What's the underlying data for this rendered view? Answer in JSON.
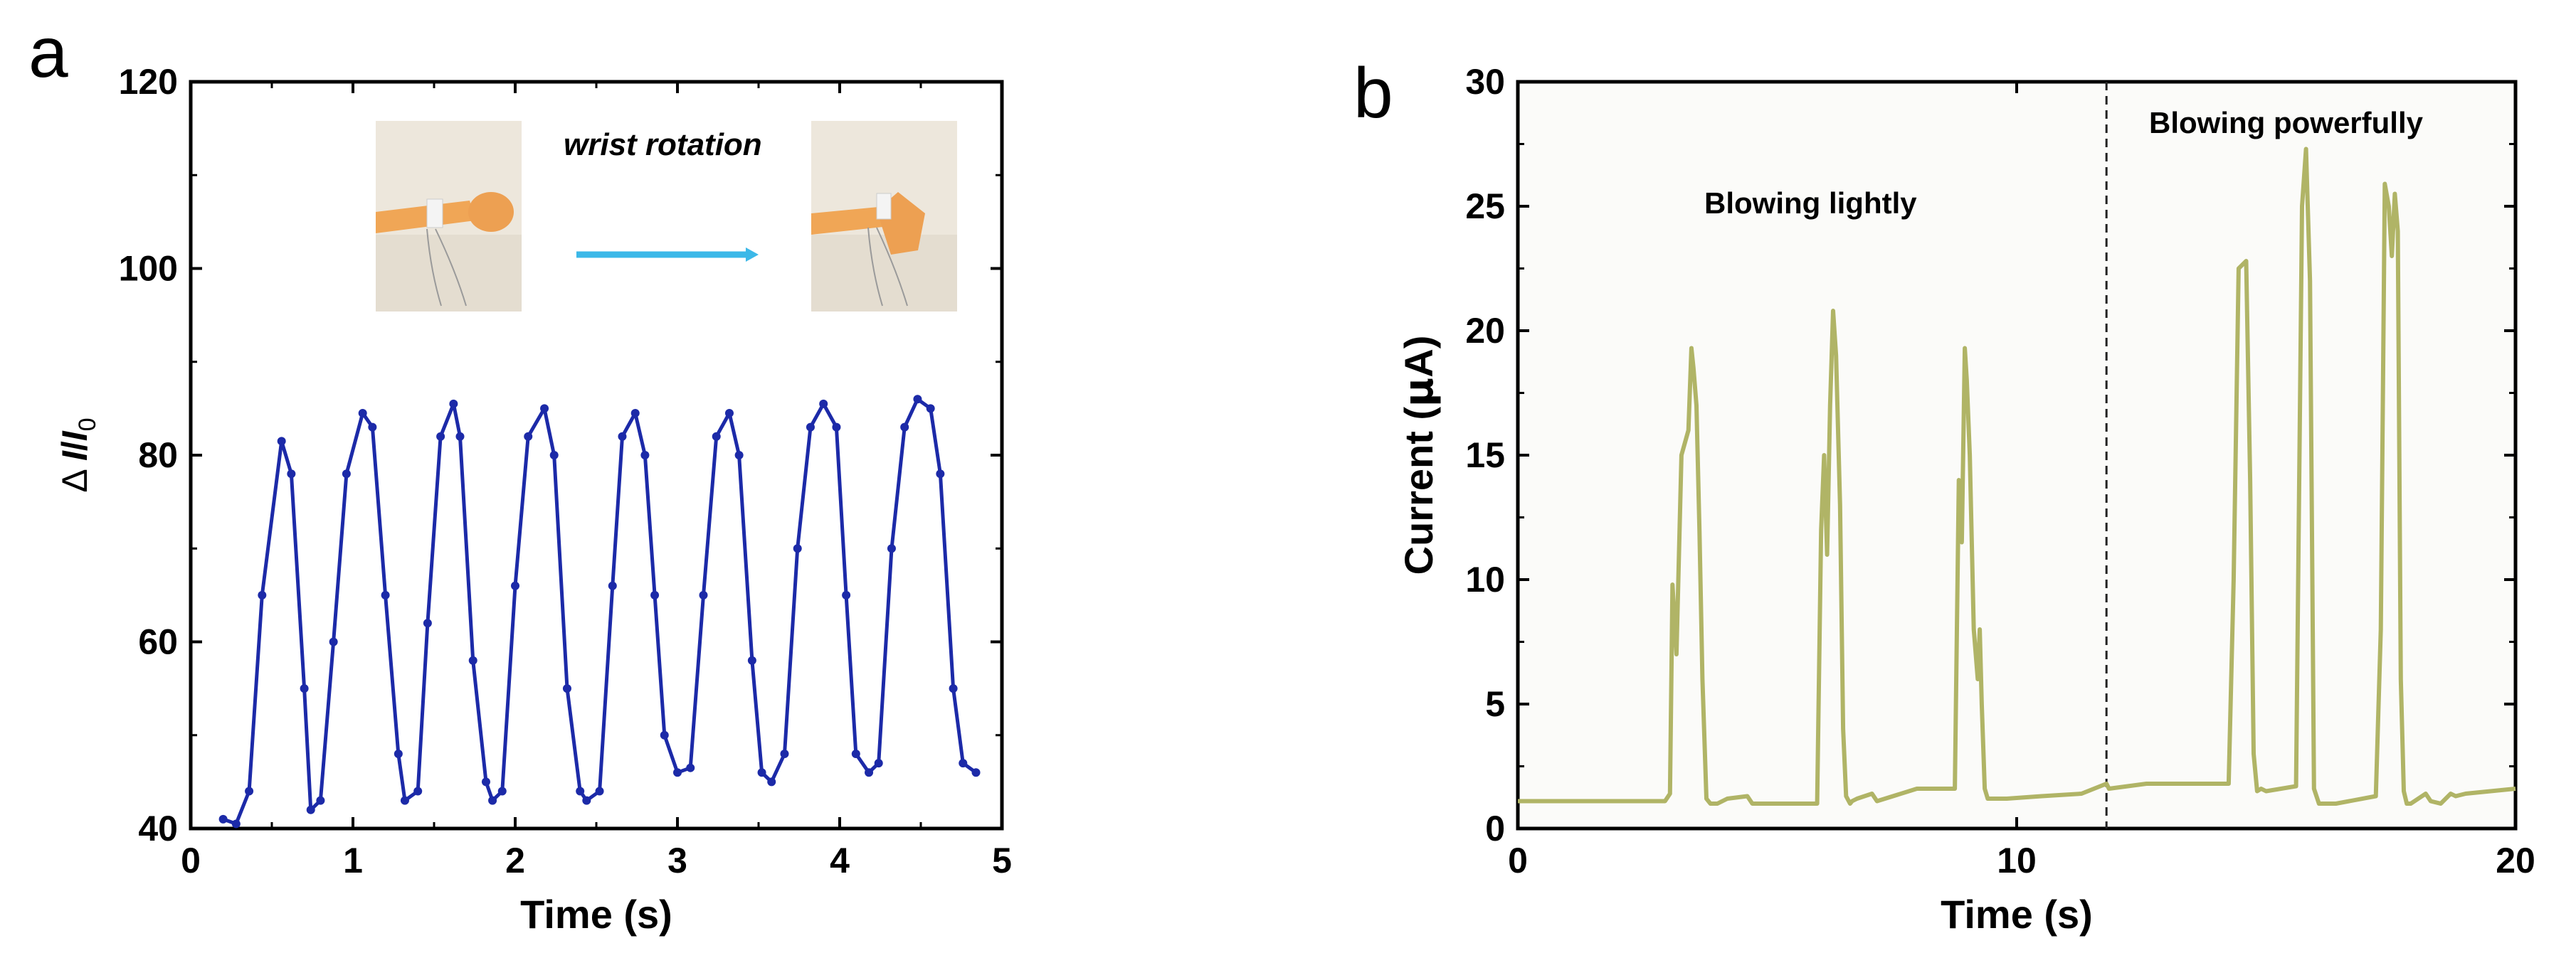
{
  "chart_data": [
    {
      "panel": "a",
      "type": "line",
      "xlabel": "Time (s)",
      "ylabel": {
        "prefix": "Δ ",
        "I": "I",
        "slash": "/",
        "I0": "I",
        "sub": "0"
      },
      "xlim": [
        0,
        5
      ],
      "ylim": [
        40,
        120
      ],
      "xticks": [
        0,
        1,
        2,
        3,
        4,
        5
      ],
      "yticks": [
        40,
        60,
        80,
        100,
        120
      ],
      "color": "#1c2aa8",
      "marker": "dot",
      "inset_label": "wrist rotation",
      "inset_images": [
        "wrist-straight-photo",
        "wrist-bent-photo"
      ],
      "series": [
        {
          "name": "ΔI/I0",
          "x": [
            0.2,
            0.28,
            0.36,
            0.44,
            0.56,
            0.62,
            0.7,
            0.74,
            0.8,
            0.88,
            0.96,
            1.06,
            1.12,
            1.2,
            1.28,
            1.32,
            1.4,
            1.46,
            1.54,
            1.62,
            1.66,
            1.74,
            1.82,
            1.86,
            1.92,
            2.0,
            2.08,
            2.18,
            2.24,
            2.32,
            2.4,
            2.44,
            2.52,
            2.6,
            2.66,
            2.74,
            2.8,
            2.86,
            2.92,
            3.0,
            3.08,
            3.16,
            3.24,
            3.32,
            3.38,
            3.46,
            3.52,
            3.58,
            3.66,
            3.74,
            3.82,
            3.9,
            3.98,
            4.04,
            4.1,
            4.18,
            4.24,
            4.32,
            4.4,
            4.48,
            4.56,
            4.62,
            4.7,
            4.76,
            4.84
          ],
          "y": [
            41,
            40.5,
            44,
            65,
            81.5,
            78,
            55,
            42,
            43,
            60,
            78,
            84.5,
            83,
            65,
            48,
            43,
            44,
            62,
            82,
            85.5,
            82,
            58,
            45,
            43,
            44,
            66,
            82,
            85,
            80,
            55,
            44,
            43,
            44,
            66,
            82,
            84.5,
            80,
            65,
            50,
            46,
            46.5,
            65,
            82,
            84.5,
            80,
            58,
            46,
            45,
            48,
            70,
            83,
            85.5,
            83,
            65,
            48,
            46,
            47,
            70,
            83,
            86,
            85,
            78,
            55,
            47,
            46
          ]
        }
      ]
    },
    {
      "panel": "b",
      "type": "line",
      "xlabel": "Time (s)",
      "ylabel": {
        "prefix": "Current (",
        "mu": "μ",
        "suffix": "A)"
      },
      "xlim": [
        0,
        20
      ],
      "ylim": [
        0,
        30
      ],
      "xticks": [
        0,
        10,
        20
      ],
      "yticks": [
        0,
        5,
        10,
        15,
        20,
        25,
        30
      ],
      "color": "#b0b466",
      "divider_x": 11.8,
      "annotations": [
        "Blowing lightly",
        "Blowing powerfully"
      ],
      "series": [
        {
          "name": "Current",
          "x": [
            0,
            2.95,
            3.05,
            3.1,
            3.18,
            3.28,
            3.42,
            3.48,
            3.52,
            3.58,
            3.64,
            3.7,
            3.78,
            3.86,
            4.0,
            4.2,
            4.6,
            4.7,
            6.0,
            6.08,
            6.14,
            6.2,
            6.26,
            6.32,
            6.38,
            6.46,
            6.52,
            6.58,
            6.66,
            6.7,
            6.8,
            7.1,
            7.2,
            8.0,
            8.6,
            8.76,
            8.84,
            8.9,
            8.96,
            9.0,
            9.06,
            9.14,
            9.22,
            9.26,
            9.3,
            9.36,
            9.42,
            9.5,
            9.8,
            10.5,
            11.3,
            11.8,
            11.85,
            12.6,
            14.25,
            14.35,
            14.45,
            14.6,
            14.68,
            14.75,
            14.82,
            14.9,
            15.0,
            15.3,
            15.6,
            15.72,
            15.8,
            15.88,
            15.96,
            16.06,
            16.14,
            16.2,
            16.4,
            17.2,
            17.3,
            17.38,
            17.46,
            17.52,
            17.58,
            17.64,
            17.7,
            17.76,
            17.82,
            17.9,
            18.2,
            18.3,
            18.5,
            18.7,
            18.8,
            19.0,
            20
          ],
          "y": [
            1.1,
            1.1,
            1.4,
            9.8,
            7,
            15,
            16,
            19.3,
            18.5,
            17,
            12,
            6,
            1.2,
            1,
            1,
            1.2,
            1.3,
            1,
            1,
            12,
            15,
            11,
            17,
            20.8,
            19,
            13,
            4,
            1.3,
            1,
            1.1,
            1.2,
            1.4,
            1.1,
            1.6,
            1.6,
            1.6,
            14,
            11.5,
            19.3,
            18,
            15,
            8,
            6,
            8,
            5,
            1.6,
            1.2,
            1.2,
            1.2,
            1.3,
            1.4,
            1.8,
            1.6,
            1.8,
            1.8,
            10,
            22.5,
            22.8,
            14,
            3,
            1.5,
            1.6,
            1.5,
            1.6,
            1.7,
            25,
            27.3,
            22,
            1.6,
            1,
            1,
            1,
            1,
            1.3,
            8,
            25.9,
            25,
            23,
            25.5,
            24,
            6,
            1.5,
            1,
            1,
            1.4,
            1.1,
            1,
            1.4,
            1.3,
            1.4,
            1.6
          ]
        }
      ]
    }
  ],
  "labels": {
    "panel_a": "a",
    "panel_b": "b"
  }
}
